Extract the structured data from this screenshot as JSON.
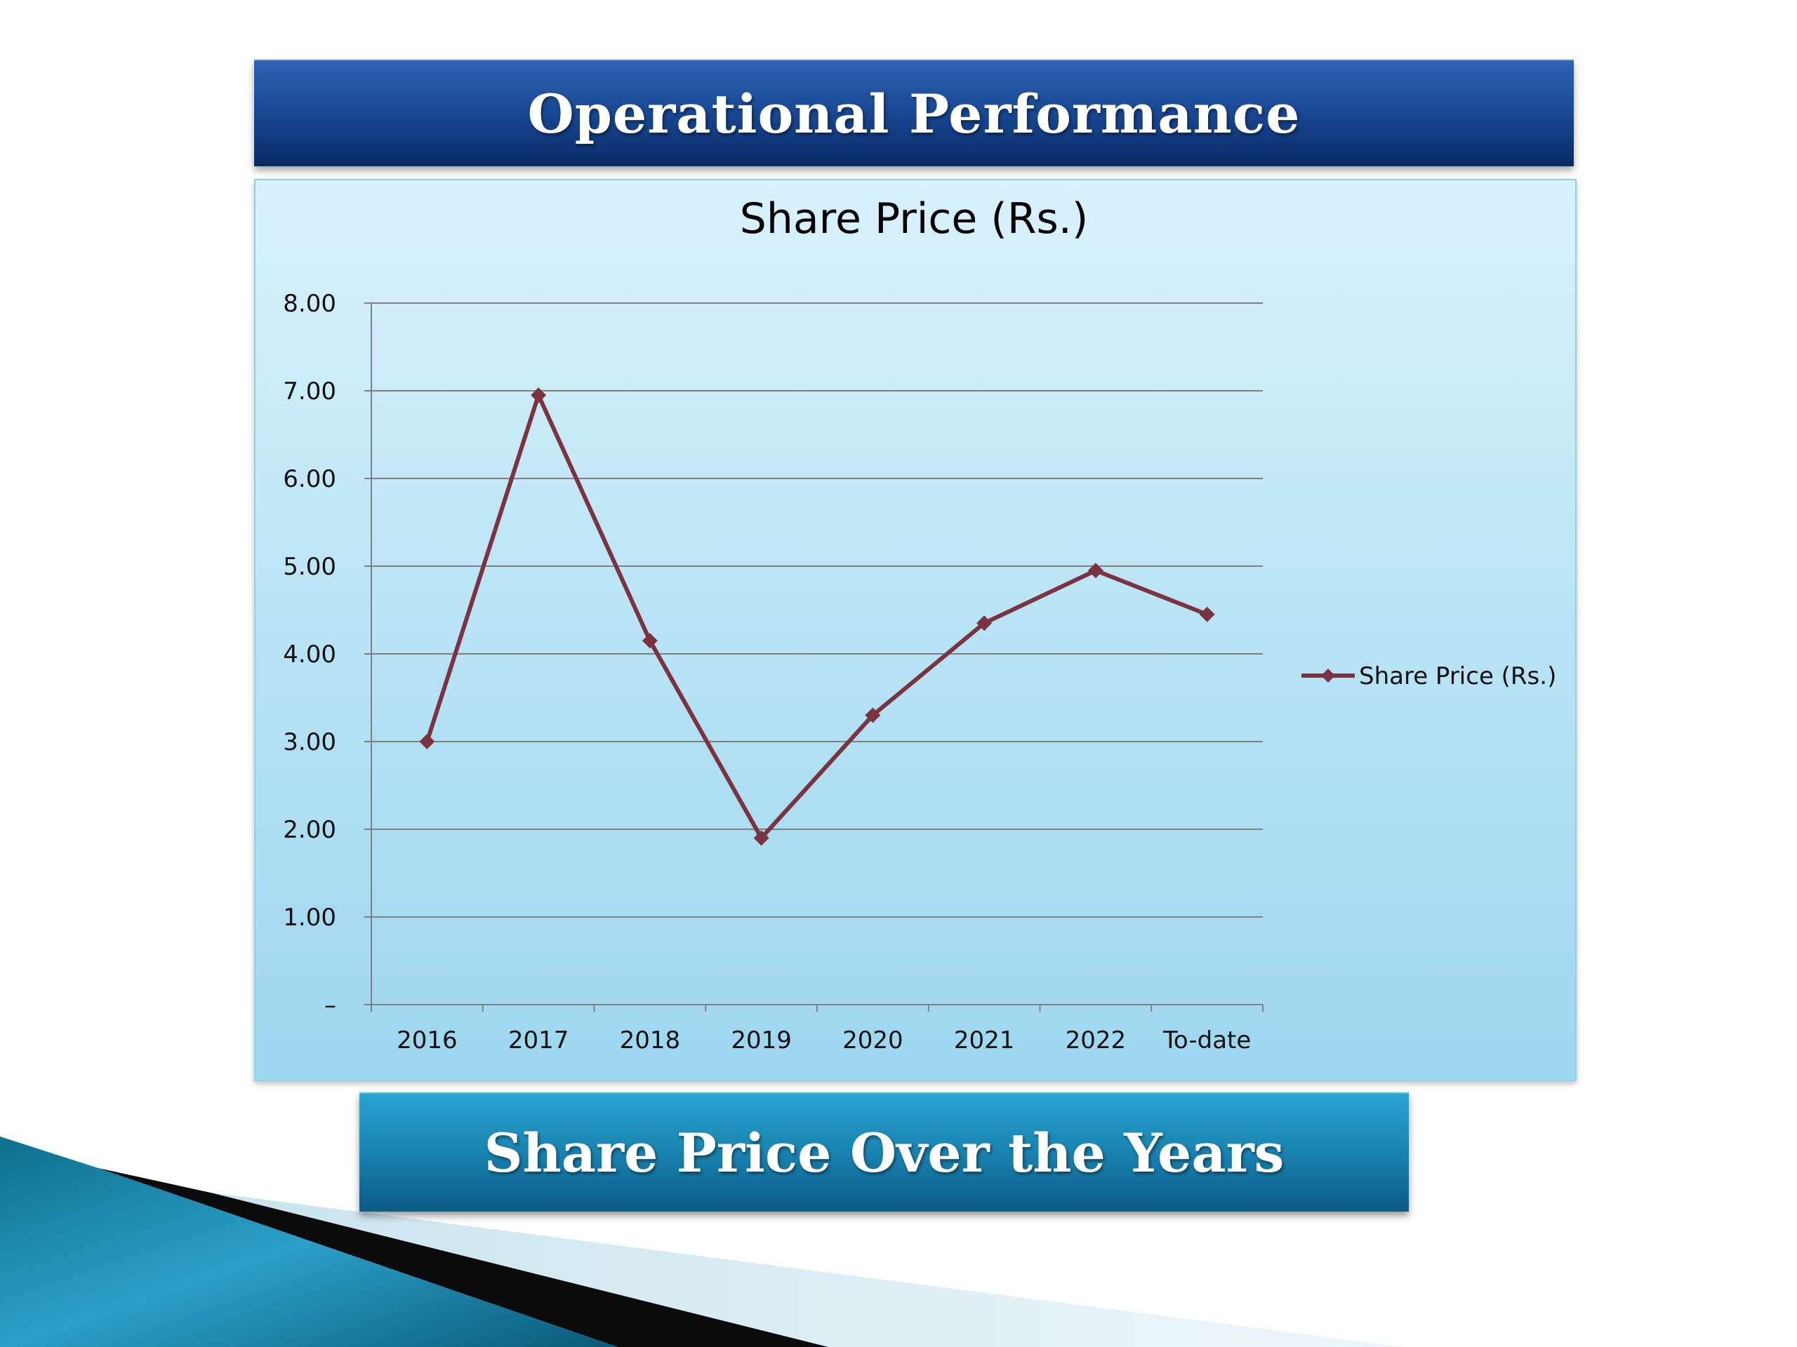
{
  "slide": {
    "title": "Operational Performance",
    "caption": "Share Price Over the Years"
  },
  "chart_data": {
    "type": "line",
    "title": "Share Price (Rs.)",
    "xlabel": "",
    "ylabel": "",
    "categories": [
      "2016",
      "2017",
      "2018",
      "2019",
      "2020",
      "2021",
      "2022",
      "To-date"
    ],
    "series": [
      {
        "name": "Share Price (Rs.)",
        "values": [
          3.0,
          6.95,
          4.15,
          1.9,
          3.3,
          4.35,
          4.95,
          4.45
        ],
        "color": "#7b3341",
        "marker": "diamond"
      }
    ],
    "ylim": [
      0,
      8
    ],
    "yticks": [
      "–",
      "1.00",
      "2.00",
      "3.00",
      "4.00",
      "5.00",
      "6.00",
      "7.00",
      "8.00"
    ],
    "grid": true,
    "legend_position": "right"
  },
  "colors": {
    "title_bar": "#1a4a97",
    "chart_background": "#c6e9f7",
    "caption_bar": "#1a86b4",
    "gridline": "#7f7f7f",
    "series": "#7b3341"
  }
}
